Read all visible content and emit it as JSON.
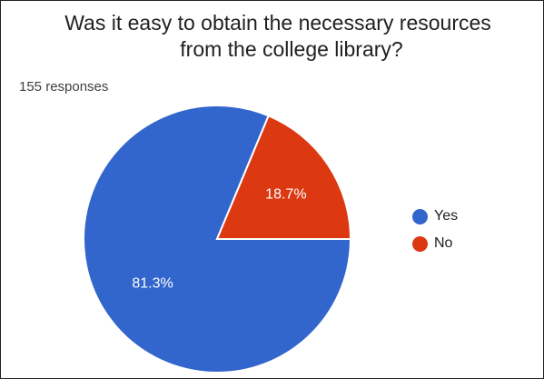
{
  "chart_data": {
    "type": "pie",
    "title_lines": [
      "Was it easy to obtain the necessary resources",
      "from the college library?"
    ],
    "subtitle": "155 responses",
    "slices": [
      {
        "label": "Yes",
        "value": 81.3,
        "value_label": "81.3%",
        "color": "#3366cc"
      },
      {
        "label": "No",
        "value": 18.7,
        "value_label": "18.7%",
        "color": "#dc3912"
      }
    ],
    "legend_position": "right"
  }
}
